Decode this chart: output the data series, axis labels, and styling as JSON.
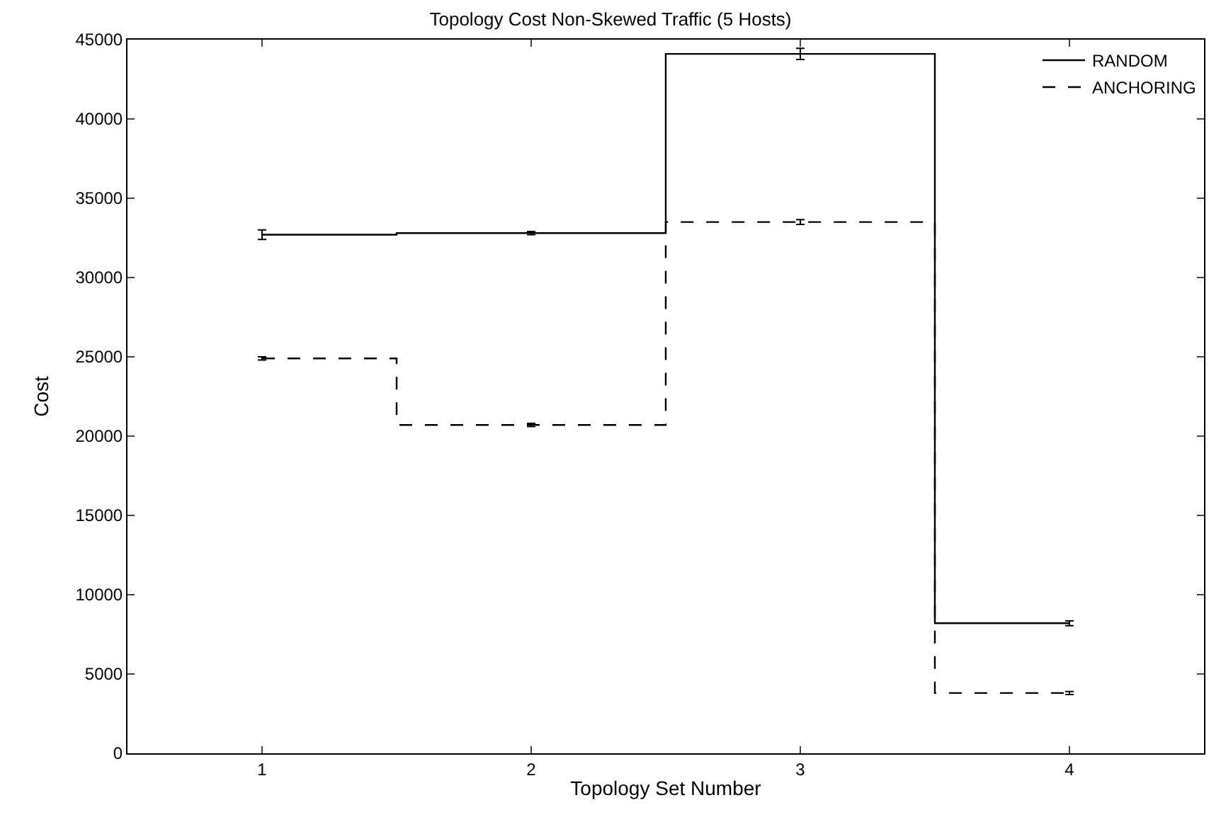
{
  "chart_data": {
    "type": "step",
    "title": "Topology Cost Non-Skewed Traffic (5 Hosts)",
    "xlabel": "Topology Set Number",
    "ylabel": "Cost",
    "x": [
      1,
      2,
      3,
      4
    ],
    "xlim": [
      0.5,
      4.5
    ],
    "xticks": [
      1,
      2,
      3,
      4
    ],
    "ylim": [
      0,
      45000
    ],
    "yticks": [
      0,
      5000,
      10000,
      15000,
      20000,
      25000,
      30000,
      35000,
      40000,
      45000
    ],
    "series": [
      {
        "name": "RANDOM",
        "color": "#000000",
        "line_style": "solid",
        "values": [
          32700,
          32800,
          44100,
          8200
        ],
        "errors": [
          300,
          100,
          350,
          150
        ]
      },
      {
        "name": "ANCHORING",
        "color": "#000000",
        "line_style": "dashed",
        "values": [
          24900,
          20700,
          33500,
          3800
        ],
        "errors": [
          100,
          100,
          150,
          100
        ]
      }
    ],
    "legend": "top right"
  }
}
